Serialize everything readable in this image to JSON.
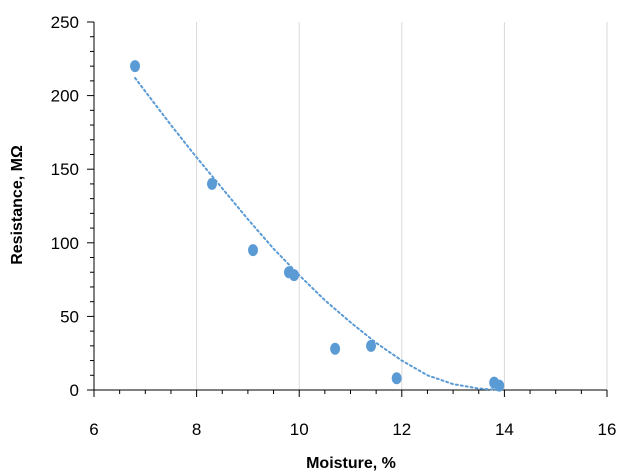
{
  "chart_data": {
    "type": "scatter",
    "title": "",
    "xlabel": "Moisture, %",
    "ylabel": "Resistance, MΩ",
    "xlim": [
      6,
      16
    ],
    "ylim": [
      0,
      250
    ],
    "xticks": [
      6,
      8,
      10,
      12,
      14,
      16
    ],
    "yticks": [
      0,
      50,
      100,
      150,
      200,
      250
    ],
    "x_minor_step": 0.5,
    "y_minor_step": 10,
    "grid": "vertical-major",
    "legend": "none",
    "colors": {
      "marker": "#5b9bd5",
      "trendline": "#5b9bd5",
      "grid": "#d9d9d9",
      "axis": "#000000"
    },
    "series": [
      {
        "points": [
          {
            "x": 6.8,
            "y": 220
          },
          {
            "x": 8.3,
            "y": 140
          },
          {
            "x": 9.1,
            "y": 95
          },
          {
            "x": 9.8,
            "y": 80
          },
          {
            "x": 9.9,
            "y": 78
          },
          {
            "x": 10.7,
            "y": 28
          },
          {
            "x": 11.4,
            "y": 30
          },
          {
            "x": 11.9,
            "y": 8
          },
          {
            "x": 13.8,
            "y": 5
          },
          {
            "x": 13.9,
            "y": 3
          }
        ]
      }
    ],
    "trendline": {
      "type": "polynomial",
      "style": "dotted",
      "points": [
        {
          "x": 6.8,
          "y": 212
        },
        {
          "x": 7.5,
          "y": 180
        },
        {
          "x": 8.0,
          "y": 158
        },
        {
          "x": 8.5,
          "y": 137
        },
        {
          "x": 9.0,
          "y": 116
        },
        {
          "x": 9.5,
          "y": 96
        },
        {
          "x": 10.0,
          "y": 78
        },
        {
          "x": 10.5,
          "y": 61
        },
        {
          "x": 11.0,
          "y": 46
        },
        {
          "x": 11.5,
          "y": 32
        },
        {
          "x": 12.0,
          "y": 20
        },
        {
          "x": 12.5,
          "y": 10
        },
        {
          "x": 13.0,
          "y": 4
        },
        {
          "x": 13.5,
          "y": 1
        },
        {
          "x": 13.9,
          "y": 0
        }
      ]
    }
  }
}
